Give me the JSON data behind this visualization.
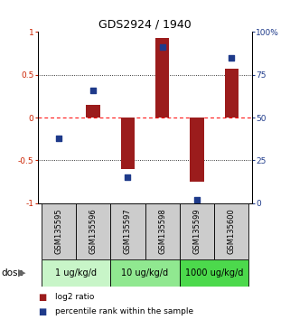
{
  "title": "GDS2924 / 1940",
  "samples": [
    "GSM135595",
    "GSM135596",
    "GSM135597",
    "GSM135598",
    "GSM135599",
    "GSM135600"
  ],
  "log2_ratio": [
    0.0,
    0.15,
    -0.6,
    0.93,
    -0.75,
    0.57
  ],
  "percentile_rank": [
    38,
    66,
    15,
    91,
    2,
    85
  ],
  "bar_color": "#9B1C1C",
  "dot_color": "#1E3A8A",
  "ylim_left": [
    -1,
    1
  ],
  "ylim_right": [
    0,
    100
  ],
  "yticks_left": [
    -1,
    -0.5,
    0,
    0.5,
    1
  ],
  "ytick_labels_left": [
    "-1",
    "-0.5",
    "0",
    "0.5",
    "1"
  ],
  "yticks_right": [
    0,
    25,
    50,
    75,
    100
  ],
  "ytick_labels_right": [
    "0",
    "25",
    "50",
    "75",
    "100%"
  ],
  "dose_groups": [
    {
      "label": "1 ug/kg/d",
      "start": 0,
      "end": 2,
      "color": "#c8f5c8"
    },
    {
      "label": "10 ug/kg/d",
      "start": 2,
      "end": 4,
      "color": "#90e890"
    },
    {
      "label": "1000 ug/kg/d",
      "start": 4,
      "end": 6,
      "color": "#4cd94c"
    }
  ],
  "dose_label": "dose",
  "legend_bar_label": "log2 ratio",
  "legend_dot_label": "percentile rank within the sample",
  "bar_width": 0.4,
  "dot_size": 20
}
